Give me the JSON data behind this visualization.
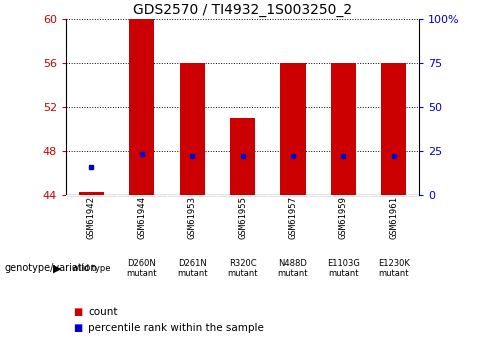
{
  "title": "GDS2570 / TI4932_1S003250_2",
  "samples": [
    "GSM61942",
    "GSM61944",
    "GSM61953",
    "GSM61955",
    "GSM61957",
    "GSM61959",
    "GSM61961"
  ],
  "genotypes": [
    "wild type",
    "D260N\nmutant",
    "D261N\nmutant",
    "R320C\nmutant",
    "N488D\nmutant",
    "E1103G\nmutant",
    "E1230K\nmutant"
  ],
  "count_values": [
    44.3,
    60.0,
    56.0,
    51.0,
    56.0,
    56.0,
    56.0
  ],
  "percentile_values": [
    46.5,
    47.7,
    47.5,
    47.5,
    47.5,
    47.5,
    47.5
  ],
  "ymin": 44,
  "ymax": 60,
  "yticks": [
    44,
    48,
    52,
    56,
    60
  ],
  "y2ticks": [
    0,
    25,
    50,
    75,
    100
  ],
  "y2labels": [
    "0",
    "25",
    "50",
    "75",
    "100%"
  ],
  "bar_color": "#cc0000",
  "dot_color": "#0000cc",
  "bar_base": 44,
  "bar_width": 0.5,
  "legend_label_count": "count",
  "legend_label_pct": "percentile rank within the sample",
  "genotype_label": "genotype/variation",
  "genotype_row_color": "#ccffcc",
  "sample_row_color": "#cccccc",
  "axis_color_left": "#cc0000",
  "axis_color_right": "#0000cc",
  "grid_color": "#000000",
  "title_fontsize": 10,
  "tick_fontsize": 8,
  "sample_fontsize": 6.5,
  "geno_fontsize": 6.0,
  "legend_fontsize": 7.5
}
